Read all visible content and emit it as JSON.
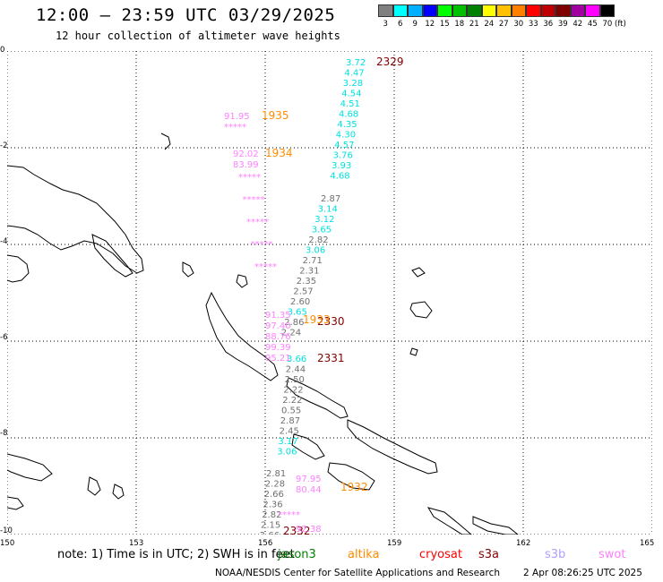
{
  "header": {
    "title": "12:00 – 23:59 UTC 03/29/2025",
    "subtitle": "12 hour collection of altimeter wave heights"
  },
  "legend": {
    "labels": [
      "3",
      "6",
      "9",
      "12",
      "15",
      "18",
      "21",
      "24",
      "27",
      "30",
      "33",
      "36",
      "39",
      "42",
      "45",
      "70 (ft)"
    ],
    "colors": [
      "#808080",
      "#00ffff",
      "#00b0ff",
      "#0000ff",
      "#00ff00",
      "#00c000",
      "#008000",
      "#ffff00",
      "#ffc000",
      "#ff8000",
      "#ff0000",
      "#c00000",
      "#800000",
      "#a000a0",
      "#ff00ff",
      "#000000"
    ]
  },
  "axes": {
    "y_labels": [
      "0",
      "-2",
      "-4",
      "-6",
      "-8",
      "-10"
    ],
    "x_labels": [
      "150",
      "153",
      "156",
      "159",
      "162",
      "165"
    ]
  },
  "tracks": [
    {
      "time": "2329",
      "color": "#800000",
      "values": [
        {
          "v": "3.72",
          "c": "#00e0e0"
        },
        {
          "v": "4.47",
          "c": "#00e0e0"
        },
        {
          "v": "3.28",
          "c": "#00e0e0"
        },
        {
          "v": "4.54",
          "c": "#00e0e0"
        },
        {
          "v": "4.51",
          "c": "#00e0e0"
        },
        {
          "v": "4.68",
          "c": "#00e0e0"
        },
        {
          "v": "4.35",
          "c": "#00e0e0"
        },
        {
          "v": "4.30",
          "c": "#00e0e0"
        },
        {
          "v": "4.57",
          "c": "#00e0e0"
        },
        {
          "v": "3.76",
          "c": "#00e0e0"
        },
        {
          "v": "3.93",
          "c": "#00e0e0"
        },
        {
          "v": "4.68",
          "c": "#00e0e0"
        }
      ]
    },
    {
      "time": "2330",
      "color": "#800000",
      "values": [
        {
          "v": "2.87",
          "c": "#707070"
        },
        {
          "v": "3.14",
          "c": "#00e0e0"
        },
        {
          "v": "3.12",
          "c": "#00e0e0"
        },
        {
          "v": "3.65",
          "c": "#00e0e0"
        },
        {
          "v": "2.82",
          "c": "#707070"
        },
        {
          "v": "3.06",
          "c": "#00e0e0"
        },
        {
          "v": "2.71",
          "c": "#707070"
        },
        {
          "v": "2.31",
          "c": "#707070"
        },
        {
          "v": "2.35",
          "c": "#707070"
        },
        {
          "v": "2.57",
          "c": "#707070"
        },
        {
          "v": "2.60",
          "c": "#707070"
        },
        {
          "v": "3.65",
          "c": "#00e0e0"
        },
        {
          "v": "2.86",
          "c": "#707070"
        },
        {
          "v": "2.24",
          "c": "#707070"
        }
      ]
    },
    {
      "time": "2331",
      "color": "#800000",
      "values": [
        {
          "v": "3.66",
          "c": "#00e0e0"
        },
        {
          "v": "2.44",
          "c": "#707070"
        },
        {
          "v": "2.50",
          "c": "#707070"
        },
        {
          "v": "2.22",
          "c": "#707070"
        },
        {
          "v": "2.22",
          "c": "#707070"
        },
        {
          "v": "0.55",
          "c": "#707070"
        },
        {
          "v": "2.87",
          "c": "#707070"
        },
        {
          "v": "2.45",
          "c": "#707070"
        },
        {
          "v": "3.17",
          "c": "#00e0e0"
        },
        {
          "v": "3.06",
          "c": "#00e0e0"
        }
      ]
    },
    {
      "time": "2332",
      "color": "#800000",
      "values": [
        {
          "v": "2.81",
          "c": "#707070"
        },
        {
          "v": "2.28",
          "c": "#707070"
        },
        {
          "v": "2.66",
          "c": "#707070"
        },
        {
          "v": "2.36",
          "c": "#707070"
        },
        {
          "v": "2.82",
          "c": "#707070"
        },
        {
          "v": "2.15",
          "c": "#707070"
        },
        {
          "v": "2.66",
          "c": "#707070"
        }
      ]
    }
  ],
  "altika_labels": [
    {
      "time": "1935",
      "color": "#ff8c00",
      "left": [
        "91.95",
        "*****"
      ]
    },
    {
      "time": "1934",
      "color": "#ff8c00",
      "left": [
        "92.02",
        "83.99",
        "*****",
        "*****",
        "*****",
        "*****",
        "*****"
      ]
    },
    {
      "time": "1933",
      "color": "#ff8c00",
      "left": [
        "91.35",
        "97.40",
        "88.76",
        "99.39",
        "95.21"
      ]
    },
    {
      "time": "1932",
      "color": "#ff8c00",
      "left": [
        "97.95",
        "80.44",
        "*****",
        "92.38"
      ]
    }
  ],
  "footer": {
    "note": "note:  1) Time is in UTC;  2) SWH is in feet",
    "satellites": [
      {
        "name": "jason3",
        "color": "#008000"
      },
      {
        "name": "altika",
        "color": "#ff8c00"
      },
      {
        "name": "cryosat",
        "color": "#ff0000"
      },
      {
        "name": "s3a",
        "color": "#800000"
      },
      {
        "name": "s3b",
        "color": "#b0a0ff"
      },
      {
        "name": "swot",
        "color": "#ff80ff"
      }
    ],
    "credit": "NOAA/NESDIS Center for Satellite Applications and Research",
    "timestamp": "2 Apr 08:26:25 UTC 2025"
  }
}
